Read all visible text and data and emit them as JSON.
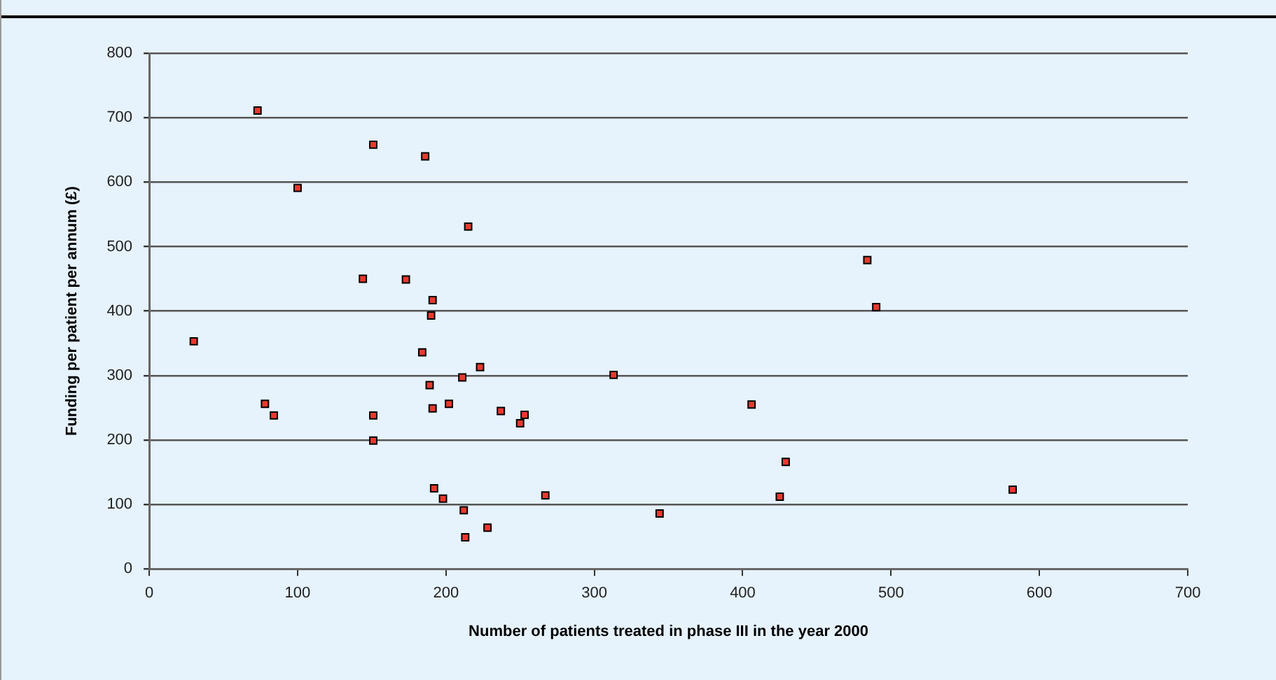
{
  "chart_data": {
    "type": "scatter",
    "xlabel": "Number of patients treated in phase III in the year 2000",
    "ylabel": "Funding per patient per annum (£)",
    "xlim": [
      0,
      700
    ],
    "xticks": [
      0,
      100,
      200,
      300,
      400,
      500,
      600,
      700
    ],
    "ylim": [
      0,
      800
    ],
    "yticks": [
      0,
      100,
      200,
      300,
      400,
      500,
      600,
      700,
      800
    ],
    "grid": "y",
    "marker": "square",
    "series": [
      {
        "color": "#e8392e",
        "x": [
          30,
          73,
          151,
          186,
          100,
          215,
          144,
          173,
          191,
          190,
          184,
          223,
          211,
          189,
          191,
          202,
          237,
          78,
          84,
          151,
          151,
          192,
          198,
          212,
          228,
          213,
          253,
          250,
          267,
          313,
          344,
          406,
          429,
          425,
          484,
          490,
          582
        ],
        "values": [
          353,
          711,
          658,
          640,
          591,
          531,
          450,
          449,
          417,
          393,
          336,
          313,
          297,
          285,
          249,
          256,
          245,
          256,
          238,
          238,
          199,
          125,
          109,
          91,
          64,
          49,
          239,
          226,
          114,
          301,
          86,
          255,
          166,
          112,
          479,
          406,
          123
        ]
      }
    ]
  }
}
